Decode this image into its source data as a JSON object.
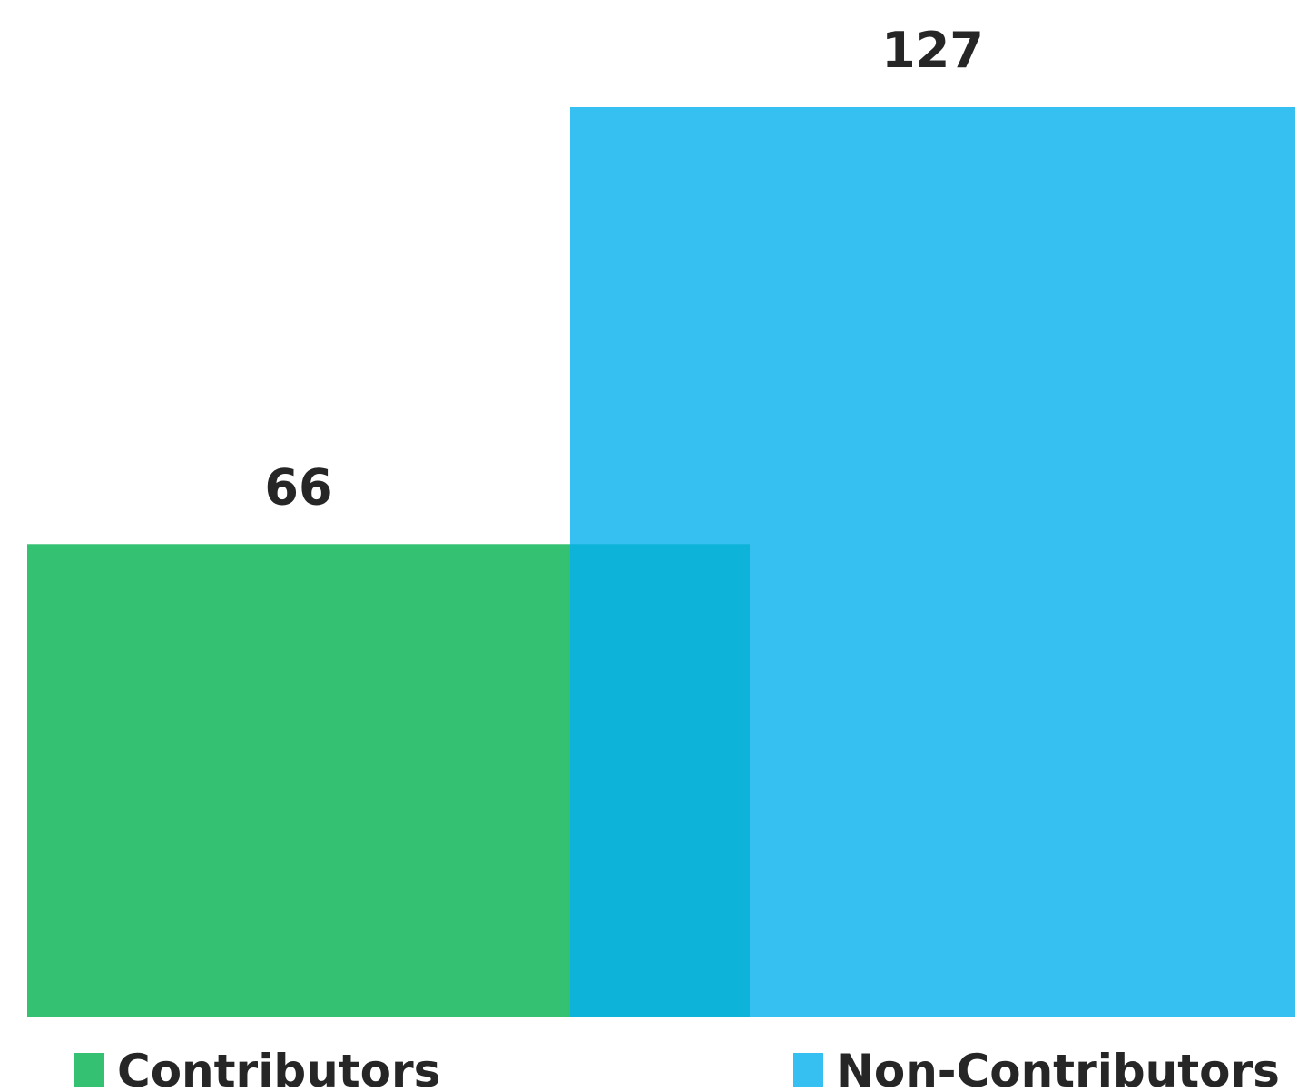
{
  "chart_data": {
    "type": "bar",
    "series": [
      {
        "name": "Contributors",
        "color": "#35c172",
        "values": [
          66
        ]
      },
      {
        "name": "Non-Contributors",
        "color": "#36c0f2",
        "values": [
          127
        ]
      }
    ],
    "overlap_color": "#0eb3d9",
    "legend": "bottom"
  }
}
